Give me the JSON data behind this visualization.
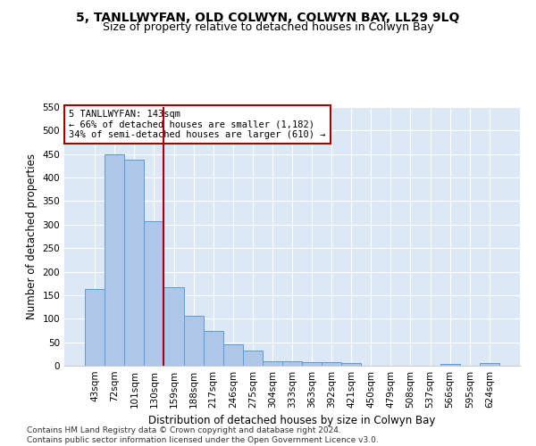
{
  "title": "5, TANLLWYFAN, OLD COLWYN, COLWYN BAY, LL29 9LQ",
  "subtitle": "Size of property relative to detached houses in Colwyn Bay",
  "xlabel": "Distribution of detached houses by size in Colwyn Bay",
  "ylabel": "Number of detached properties",
  "categories": [
    "43sqm",
    "72sqm",
    "101sqm",
    "130sqm",
    "159sqm",
    "188sqm",
    "217sqm",
    "246sqm",
    "275sqm",
    "304sqm",
    "333sqm",
    "363sqm",
    "392sqm",
    "421sqm",
    "450sqm",
    "479sqm",
    "508sqm",
    "537sqm",
    "566sqm",
    "595sqm",
    "624sqm"
  ],
  "values": [
    163,
    450,
    438,
    307,
    167,
    106,
    74,
    45,
    32,
    10,
    10,
    8,
    8,
    5,
    0,
    0,
    0,
    0,
    4,
    0,
    5
  ],
  "bar_color": "#aec6e8",
  "bar_edge_color": "#5b9bd5",
  "vline_x": 3.5,
  "vline_color": "#a00000",
  "annotation_line1": "5 TANLLWYFAN: 143sqm",
  "annotation_line2": "← 66% of detached houses are smaller (1,182)",
  "annotation_line3": "34% of semi-detached houses are larger (610) →",
  "annotation_box_color": "#ffffff",
  "annotation_box_edgecolor": "#a00000",
  "ylim": [
    0,
    550
  ],
  "yticks": [
    0,
    50,
    100,
    150,
    200,
    250,
    300,
    350,
    400,
    450,
    500,
    550
  ],
  "bg_color": "#dce8f5",
  "footer": "Contains HM Land Registry data © Crown copyright and database right 2024.\nContains public sector information licensed under the Open Government Licence v3.0.",
  "title_fontsize": 10,
  "subtitle_fontsize": 9,
  "xlabel_fontsize": 8.5,
  "ylabel_fontsize": 8.5,
  "tick_fontsize": 7.5,
  "annotation_fontsize": 7.5,
  "footer_fontsize": 6.5
}
